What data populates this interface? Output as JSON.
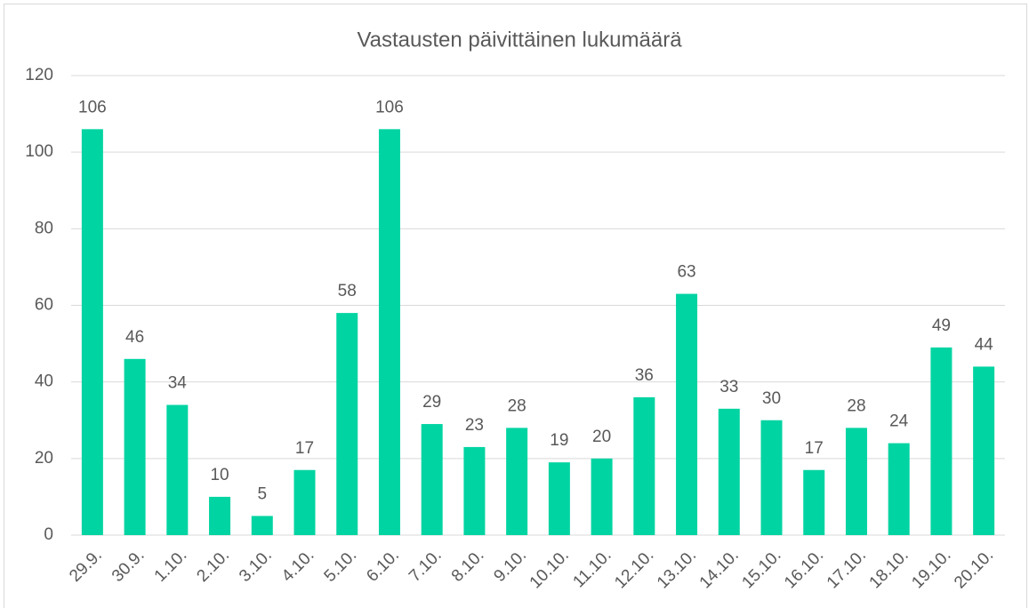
{
  "chart_data": {
    "type": "bar",
    "title": "Vastausten päivittäinen lukumäärä",
    "categories": [
      "29.9.",
      "30.9.",
      "1.10.",
      "2.10.",
      "3.10.",
      "4.10.",
      "5.10.",
      "6.10.",
      "7.10.",
      "8.10.",
      "9.10.",
      "10.10.",
      "11.10.",
      "12.10.",
      "13.10.",
      "14.10.",
      "15.10.",
      "16.10.",
      "17.10.",
      "18.10.",
      "19.10.",
      "20.10."
    ],
    "values": [
      106,
      46,
      34,
      10,
      5,
      17,
      58,
      106,
      29,
      23,
      28,
      19,
      20,
      36,
      63,
      33,
      30,
      17,
      28,
      24,
      49,
      44
    ],
    "color": "#00d4a2",
    "ylim": [
      0,
      120
    ],
    "yticks": [
      0,
      20,
      40,
      60,
      80,
      100,
      120
    ],
    "grid": true
  }
}
